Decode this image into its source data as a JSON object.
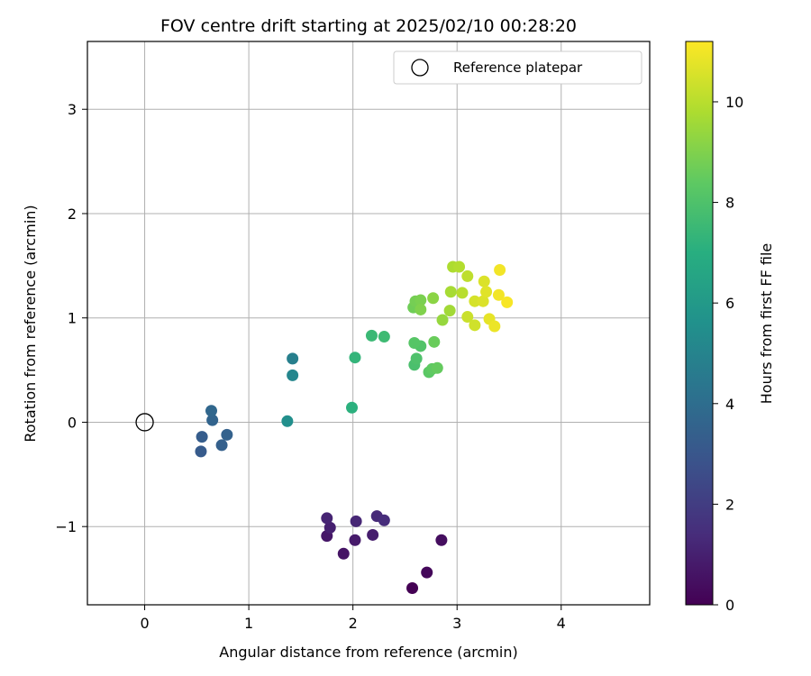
{
  "chart_data": {
    "type": "scatter",
    "title": "FOV centre drift starting at 2025/02/10 00:28:20",
    "xlabel": "Angular distance from reference (arcmin)",
    "ylabel": "Rotation from reference (arcmin)",
    "xlim": [
      -0.55,
      4.85
    ],
    "ylim": [
      -1.75,
      3.65
    ],
    "xticks": [
      0,
      1,
      2,
      3,
      4
    ],
    "yticks": [
      -1,
      0,
      1,
      2,
      3
    ],
    "grid": true,
    "legend": {
      "placement": "top-right",
      "entries": [
        "Reference platepar"
      ]
    },
    "reference_point": {
      "name": "Reference platepar",
      "x": 0,
      "y": 0
    },
    "colorbar": {
      "label": "Hours from first FF file",
      "colormap": "viridis",
      "min": 0,
      "max": 11.2,
      "ticks": [
        0,
        2,
        4,
        6,
        8,
        10
      ]
    },
    "points": [
      {
        "x": 2.57,
        "y": -1.59,
        "hours": 0.0
      },
      {
        "x": 2.71,
        "y": -1.44,
        "hours": 0.2
      },
      {
        "x": 2.85,
        "y": -1.13,
        "hours": 0.4
      },
      {
        "x": 1.91,
        "y": -1.26,
        "hours": 0.6
      },
      {
        "x": 1.75,
        "y": -1.09,
        "hours": 0.7
      },
      {
        "x": 2.02,
        "y": -1.13,
        "hours": 0.8
      },
      {
        "x": 2.19,
        "y": -1.08,
        "hours": 0.9
      },
      {
        "x": 1.78,
        "y": -1.01,
        "hours": 1.0
      },
      {
        "x": 1.75,
        "y": -0.92,
        "hours": 1.1
      },
      {
        "x": 2.03,
        "y": -0.95,
        "hours": 1.2
      },
      {
        "x": 2.23,
        "y": -0.9,
        "hours": 1.3
      },
      {
        "x": 2.3,
        "y": -0.94,
        "hours": 1.4
      },
      {
        "x": 0.54,
        "y": -0.28,
        "hours": 3.2
      },
      {
        "x": 0.55,
        "y": -0.14,
        "hours": 3.3
      },
      {
        "x": 0.74,
        "y": -0.22,
        "hours": 3.4
      },
      {
        "x": 0.79,
        "y": -0.12,
        "hours": 3.5
      },
      {
        "x": 0.65,
        "y": 0.02,
        "hours": 3.6
      },
      {
        "x": 0.64,
        "y": 0.11,
        "hours": 3.7
      },
      {
        "x": 1.42,
        "y": 0.61,
        "hours": 4.8
      },
      {
        "x": 1.42,
        "y": 0.45,
        "hours": 5.1
      },
      {
        "x": 1.37,
        "y": 0.01,
        "hours": 5.5
      },
      {
        "x": 1.99,
        "y": 0.14,
        "hours": 7.1
      },
      {
        "x": 2.02,
        "y": 0.62,
        "hours": 7.3
      },
      {
        "x": 2.18,
        "y": 0.83,
        "hours": 7.5
      },
      {
        "x": 2.3,
        "y": 0.82,
        "hours": 7.6
      },
      {
        "x": 2.59,
        "y": 0.55,
        "hours": 7.9
      },
      {
        "x": 2.61,
        "y": 0.61,
        "hours": 8.0
      },
      {
        "x": 2.65,
        "y": 0.73,
        "hours": 8.1
      },
      {
        "x": 2.59,
        "y": 0.76,
        "hours": 8.2
      },
      {
        "x": 2.73,
        "y": 0.48,
        "hours": 8.3
      },
      {
        "x": 2.76,
        "y": 0.51,
        "hours": 8.4
      },
      {
        "x": 2.81,
        "y": 0.52,
        "hours": 8.5
      },
      {
        "x": 2.78,
        "y": 0.77,
        "hours": 8.6
      },
      {
        "x": 2.58,
        "y": 1.1,
        "hours": 8.7
      },
      {
        "x": 2.6,
        "y": 1.16,
        "hours": 8.8
      },
      {
        "x": 2.65,
        "y": 1.17,
        "hours": 8.9
      },
      {
        "x": 2.65,
        "y": 1.08,
        "hours": 9.0
      },
      {
        "x": 2.77,
        "y": 1.19,
        "hours": 9.2
      },
      {
        "x": 2.86,
        "y": 0.98,
        "hours": 9.4
      },
      {
        "x": 2.93,
        "y": 1.07,
        "hours": 9.6
      },
      {
        "x": 2.94,
        "y": 1.25,
        "hours": 9.7
      },
      {
        "x": 2.96,
        "y": 1.49,
        "hours": 9.8
      },
      {
        "x": 3.02,
        "y": 1.49,
        "hours": 9.9
      },
      {
        "x": 3.05,
        "y": 1.24,
        "hours": 10.0
      },
      {
        "x": 3.1,
        "y": 1.4,
        "hours": 10.1
      },
      {
        "x": 3.1,
        "y": 1.01,
        "hours": 10.3
      },
      {
        "x": 3.17,
        "y": 0.93,
        "hours": 10.4
      },
      {
        "x": 3.17,
        "y": 1.16,
        "hours": 10.5
      },
      {
        "x": 3.25,
        "y": 1.16,
        "hours": 10.6
      },
      {
        "x": 3.26,
        "y": 1.35,
        "hours": 10.6
      },
      {
        "x": 3.28,
        "y": 1.25,
        "hours": 10.7
      },
      {
        "x": 3.31,
        "y": 0.99,
        "hours": 10.8
      },
      {
        "x": 3.36,
        "y": 0.92,
        "hours": 10.9
      },
      {
        "x": 3.4,
        "y": 1.22,
        "hours": 11.0
      },
      {
        "x": 3.41,
        "y": 1.46,
        "hours": 11.0
      },
      {
        "x": 3.48,
        "y": 1.15,
        "hours": 11.1
      }
    ]
  }
}
